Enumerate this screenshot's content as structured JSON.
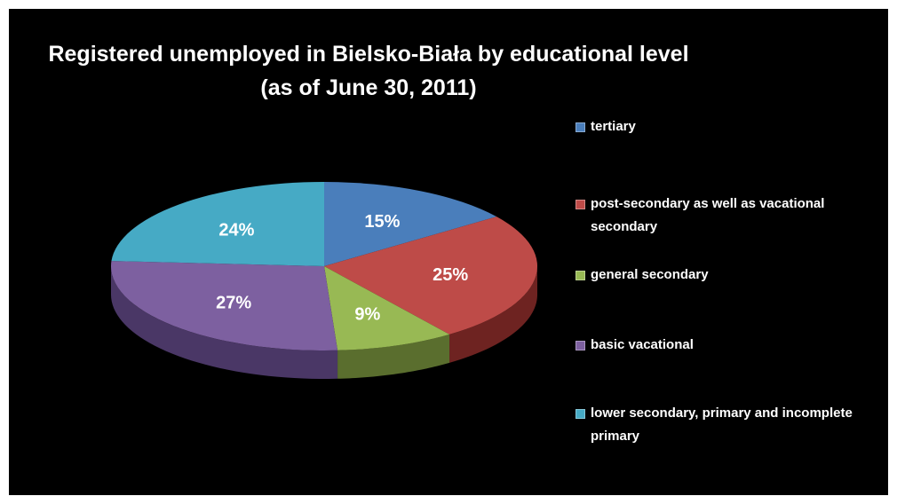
{
  "chart_data": {
    "type": "pie",
    "title_lines": [
      "Registered unemployed in Bielsko-Biała by educational level",
      "(as of June 30, 2011)"
    ],
    "legend_position": "right",
    "slices": [
      {
        "label": "tertiary",
        "value": 15,
        "value_label": "15%",
        "color": "#4A7EBB",
        "dark": "#2C4E78"
      },
      {
        "label": "post-secondary as well as vacational secondary",
        "value": 25,
        "value_label": "25%",
        "color": "#BE4B48",
        "dark": "#6E2321"
      },
      {
        "label": "general secondary",
        "value": 9,
        "value_label": "9%",
        "color": "#98B954",
        "dark": "#5A6E2E"
      },
      {
        "label": "basic vacational",
        "value": 27,
        "value_label": "27%",
        "color": "#7D60A0",
        "dark": "#4A3766"
      },
      {
        "label": "lower secondary, primary and incomplete primary",
        "value": 24,
        "value_label": "24%",
        "color": "#46AAC5",
        "dark": "#26687A"
      }
    ]
  }
}
